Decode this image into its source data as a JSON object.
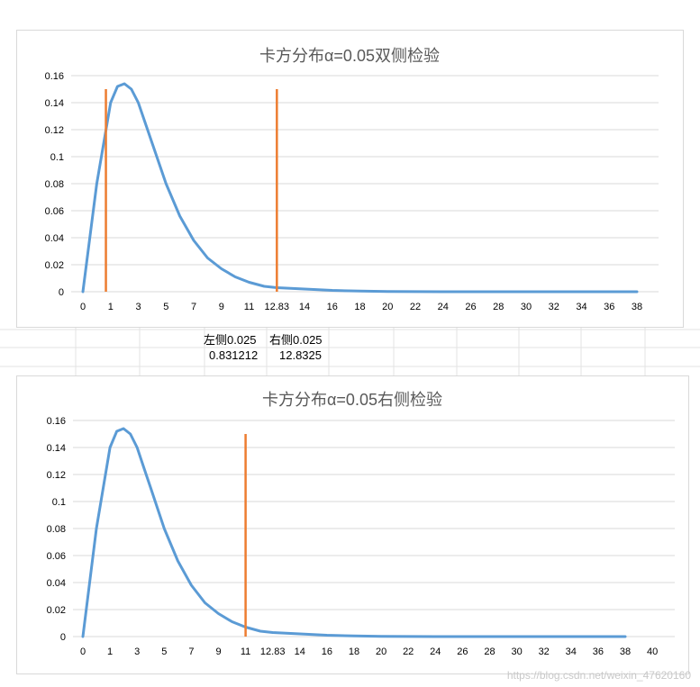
{
  "colors": {
    "curve": "#5b9bd5",
    "critical_line": "#ed7d31",
    "grid": "#d9d9d9",
    "text": "#595959"
  },
  "chart_data": [
    {
      "type": "line",
      "title": "卡方分布α=0.05双侧检验",
      "x_tick_labels": [
        "0",
        "1",
        "3",
        "5",
        "7",
        "9",
        "11",
        "12.83",
        "14",
        "16",
        "18",
        "20",
        "22",
        "24",
        "26",
        "28",
        "30",
        "32",
        "34",
        "36",
        "38"
      ],
      "y_ticks": [
        "0",
        "0.02",
        "0.04",
        "0.06",
        "0.08",
        "0.1",
        "0.12",
        "0.14",
        "0.16"
      ],
      "ylim": [
        0,
        0.16
      ],
      "grid": true,
      "series": [
        {
          "x": [
            0,
            0.5,
            1,
            1.5,
            2,
            2.5,
            3,
            3.5,
            4,
            4.5,
            5,
            6,
            7,
            8,
            9,
            10,
            11,
            12,
            12.83,
            14,
            16,
            18,
            20,
            22,
            24,
            26,
            28,
            30,
            32,
            34,
            36,
            38
          ],
          "y": [
            0,
            0.08,
            0.14,
            0.152,
            0.154,
            0.15,
            0.14,
            0.125,
            0.11,
            0.095,
            0.08,
            0.056,
            0.038,
            0.025,
            0.017,
            0.011,
            0.007,
            0.004,
            0.003,
            0.002,
            0.001,
            0.0005,
            0.0002,
            0.0001,
            0,
            0,
            0,
            0,
            0,
            0,
            0,
            0
          ]
        }
      ],
      "critical_values": [
        0.831212,
        12.8325
      ],
      "critical_line_height": 0.15
    },
    {
      "type": "line",
      "title": "卡方分布α=0.05右侧检验",
      "x_tick_labels": [
        "0",
        "1",
        "3",
        "5",
        "7",
        "9",
        "11",
        "12.83",
        "14",
        "16",
        "18",
        "20",
        "22",
        "24",
        "26",
        "28",
        "30",
        "32",
        "34",
        "36",
        "38",
        "40"
      ],
      "y_ticks": [
        "0",
        "0.02",
        "0.04",
        "0.06",
        "0.08",
        "0.1",
        "0.12",
        "0.14",
        "0.16"
      ],
      "ylim": [
        0,
        0.16
      ],
      "grid": true,
      "series": [
        {
          "x": [
            0,
            0.5,
            1,
            1.5,
            2,
            2.5,
            3,
            3.5,
            4,
            4.5,
            5,
            6,
            7,
            8,
            9,
            10,
            11,
            12,
            12.83,
            14,
            16,
            18,
            20,
            22,
            24,
            26,
            28,
            30,
            32,
            34,
            36,
            38
          ],
          "y": [
            0,
            0.08,
            0.14,
            0.152,
            0.154,
            0.15,
            0.14,
            0.125,
            0.11,
            0.095,
            0.08,
            0.056,
            0.038,
            0.025,
            0.017,
            0.011,
            0.007,
            0.004,
            0.003,
            0.002,
            0.001,
            0.0005,
            0.0002,
            0.0001,
            0,
            0,
            0,
            0,
            0,
            0,
            0,
            0
          ]
        }
      ],
      "critical_values": [
        11
      ],
      "critical_line_height": 0.15
    }
  ],
  "critical_table": {
    "left_header": "左侧0.025",
    "right_header": "右侧0.025",
    "left_value": "0.831212",
    "right_value": "12.8325"
  },
  "watermark": "https://blog.csdn.net/weixin_47620160"
}
